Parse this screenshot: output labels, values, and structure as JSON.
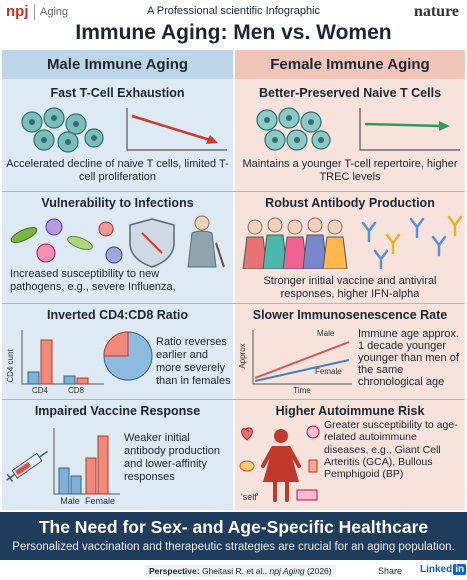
{
  "header": {
    "brand": "npj",
    "journal": "Aging",
    "kicker": "A Professional scientific Infographic",
    "publisher": "nature",
    "title": "Immune Aging: Men vs. Women"
  },
  "columns": [
    {
      "heading": "Male Immune Aging",
      "panels": [
        {
          "title": "Fast T-Cell Exhaustion",
          "text": "Accelerated decline of naive T cells, limited T-cell proliferation"
        },
        {
          "title": "Vulnerability to Infections",
          "text": "Increased susceptibility to new pathogens, e.g., severe Influenza,"
        },
        {
          "title": "Inverted CD4:CD8 Ratio",
          "text": "Ratio reverses earlier and more severely than in females",
          "labels": [
            "CD4 cunt",
            "CD4",
            "CD8"
          ]
        },
        {
          "title": "Impaired Vaccine Response",
          "text": "Weaker initial antibody production and lower-affinity responses",
          "labels": [
            "Male",
            "Female"
          ]
        }
      ]
    },
    {
      "heading": "Female Immune Aging",
      "panels": [
        {
          "title": "Better-Preserved Naive T Cells",
          "text": "Maintains a younger T-cell repertoire, higher TREC levels"
        },
        {
          "title": "Robust Antibody Production",
          "text": "Stronger initial vaccine and antiviral responses, higher IFN-alpha"
        },
        {
          "title": "Slower Immunosenescence Rate",
          "text": "Immune age approx. 1 decade younger younger than men of the same chronological age",
          "labels": [
            "Approx",
            "Time",
            "Male",
            "Female"
          ]
        },
        {
          "title": "Higher Autoimmune Risk",
          "text": "Greater susceptibility to age-related autoimmune diseases, e.g., Giant Cell Arteritis (GCA), Bullous Pemphigoid (BP)",
          "labels": [
            "'self'"
          ]
        }
      ]
    }
  ],
  "footer": {
    "title": "The Need for Sex- and Age-Specific Healthcare",
    "subtitle": "Personalized vaccination and therapeutic strategies are crucial for an aging population."
  },
  "citation": {
    "label": "Perspective:",
    "authors": "Gheitasi R. et al.,",
    "journal": "npj Aging",
    "year": "(2026)"
  },
  "share": "Share",
  "linkedin": {
    "word": "Linked",
    "badge": "in"
  }
}
